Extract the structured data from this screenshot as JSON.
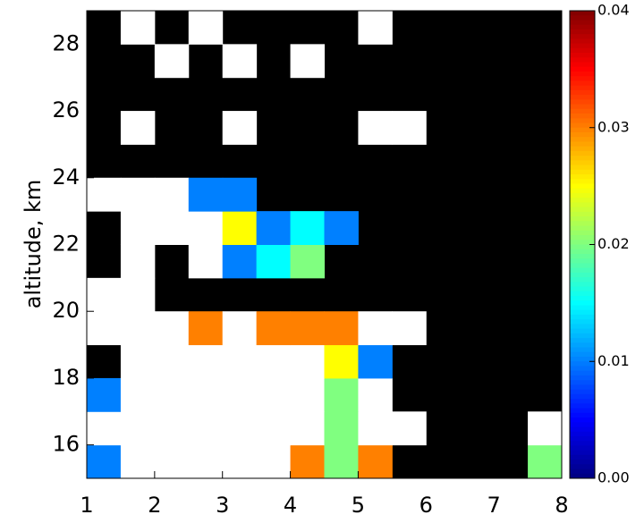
{
  "chart_data": {
    "type": "heatmap",
    "ylabel": "altitude, km",
    "x": [
      1,
      1.5,
      2,
      2.5,
      3,
      3.5,
      4,
      4.5,
      5,
      5.5,
      6,
      6.5,
      7,
      7.5,
      8
    ],
    "y": [
      15,
      16,
      17,
      18,
      19,
      20,
      21,
      22,
      23,
      24,
      25,
      26,
      27,
      28,
      29
    ],
    "z": [
      [
        0.01,
        0.045,
        0.045,
        0.045,
        0.045,
        0.045,
        0.03,
        0.02,
        0.03,
        null,
        null,
        null,
        null,
        0.02
      ],
      [
        0.045,
        0.045,
        0.045,
        0.045,
        0.045,
        0.045,
        0.045,
        0.02,
        0.045,
        0.045,
        null,
        null,
        null,
        0.045
      ],
      [
        0.01,
        0.045,
        0.045,
        0.045,
        0.045,
        0.045,
        0.045,
        0.02,
        0.045,
        null,
        null,
        null,
        null,
        null
      ],
      [
        null,
        0.045,
        0.045,
        0.045,
        0.045,
        0.045,
        0.045,
        0.025,
        0.01,
        null,
        null,
        null,
        null,
        null
      ],
      [
        0.045,
        0.045,
        0.045,
        0.03,
        0.045,
        0.03,
        0.03,
        0.03,
        0.045,
        0.045,
        null,
        null,
        null,
        null
      ],
      [
        0.045,
        0.045,
        null,
        null,
        null,
        null,
        null,
        null,
        null,
        null,
        null,
        null,
        null,
        null
      ],
      [
        null,
        0.045,
        null,
        0.045,
        0.01,
        0.015,
        0.02,
        null,
        null,
        null,
        null,
        null,
        null,
        null
      ],
      [
        null,
        0.045,
        0.045,
        0.045,
        0.025,
        0.01,
        0.015,
        0.01,
        null,
        null,
        null,
        null,
        null,
        null
      ],
      [
        0.045,
        0.045,
        0.045,
        0.01,
        0.01,
        null,
        null,
        null,
        null,
        null,
        null,
        null,
        null,
        null
      ],
      [
        null,
        null,
        null,
        null,
        null,
        null,
        null,
        null,
        null,
        null,
        null,
        null,
        null,
        null
      ],
      [
        null,
        0.045,
        null,
        null,
        0.045,
        null,
        null,
        null,
        0.045,
        0.045,
        null,
        null,
        null,
        null
      ],
      [
        null,
        null,
        null,
        null,
        null,
        null,
        null,
        null,
        null,
        null,
        null,
        null,
        null,
        null
      ],
      [
        null,
        null,
        0.045,
        null,
        0.045,
        null,
        0.045,
        null,
        null,
        null,
        null,
        null,
        null,
        null
      ],
      [
        null,
        0.045,
        null,
        0.045,
        null,
        null,
        null,
        null,
        0.045,
        null,
        null,
        null,
        null,
        null
      ]
    ],
    "xlim": [
      1,
      8
    ],
    "xticks": [
      1,
      2,
      3,
      4,
      5,
      6,
      7,
      8
    ],
    "ylim": [
      15,
      29
    ],
    "yticks": [
      16,
      18,
      20,
      22,
      24,
      26,
      28
    ],
    "colorbar": {
      "lim": [
        0,
        0.04
      ],
      "ticks": [
        {
          "value": 0,
          "label": "0.00"
        },
        {
          "value": 0.01,
          "label": "0.01"
        },
        {
          "value": 0.02,
          "label": "0.02"
        },
        {
          "value": 0.03,
          "label": "0.03"
        },
        {
          "value": 0.04,
          "label": "0.04"
        }
      ]
    }
  }
}
